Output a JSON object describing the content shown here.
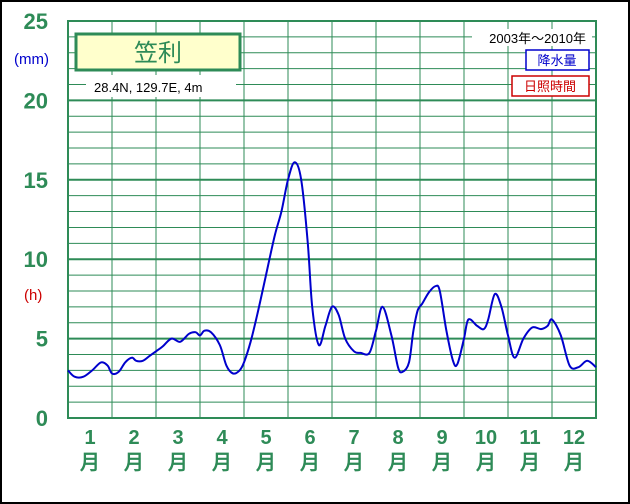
{
  "chart_data": {
    "type": "line",
    "station": {
      "name": "笠利",
      "coords": "28.4N,  129.7E,  4m"
    },
    "period": "2003年〜2010年",
    "legend": {
      "rain": "降水量",
      "sunshine": "日照時間"
    },
    "units": {
      "left": "(mm)",
      "right": "(h)"
    },
    "yticks": [
      "25",
      "20",
      "15",
      "10",
      "5",
      "0"
    ],
    "ylim": [
      0,
      25
    ],
    "xlim": [
      0,
      12
    ],
    "grid": true,
    "months": [
      {
        "num": "1",
        "kanji": "月"
      },
      {
        "num": "2",
        "kanji": "月"
      },
      {
        "num": "3",
        "kanji": "月"
      },
      {
        "num": "4",
        "kanji": "月"
      },
      {
        "num": "5",
        "kanji": "月"
      },
      {
        "num": "6",
        "kanji": "月"
      },
      {
        "num": "7",
        "kanji": "月"
      },
      {
        "num": "8",
        "kanji": "月"
      },
      {
        "num": "9",
        "kanji": "月"
      },
      {
        "num": "10",
        "kanji": "月"
      },
      {
        "num": "11",
        "kanji": "月"
      },
      {
        "num": "12",
        "kanji": "月"
      }
    ],
    "series": [
      {
        "name": "降水量",
        "color": "#0000cc",
        "x": [
          0.0,
          0.15,
          0.35,
          0.55,
          0.75,
          0.9,
          1.0,
          1.15,
          1.3,
          1.45,
          1.55,
          1.7,
          1.85,
          2.0,
          2.15,
          2.35,
          2.55,
          2.75,
          2.9,
          3.0,
          3.1,
          3.25,
          3.45,
          3.6,
          3.75,
          3.9,
          4.0,
          4.15,
          4.3,
          4.5,
          4.7,
          4.85,
          5.0,
          5.15,
          5.3,
          5.45,
          5.55,
          5.7,
          5.85,
          6.0,
          6.15,
          6.3,
          6.5,
          6.65,
          6.85,
          7.0,
          7.15,
          7.35,
          7.5,
          7.6,
          7.75,
          7.85,
          7.95,
          8.05,
          8.2,
          8.35,
          8.45,
          8.6,
          8.75,
          8.85,
          9.0,
          9.1,
          9.3,
          9.45,
          9.55,
          9.7,
          9.85,
          10.0,
          10.15,
          10.35,
          10.55,
          10.75,
          10.9,
          11.0,
          11.2,
          11.4,
          11.6,
          11.8,
          12.0
        ],
        "values": [
          3.0,
          2.6,
          2.6,
          3.0,
          3.5,
          3.3,
          2.8,
          2.9,
          3.5,
          3.8,
          3.6,
          3.6,
          3.9,
          4.2,
          4.5,
          5.0,
          4.8,
          5.3,
          5.4,
          5.2,
          5.5,
          5.4,
          4.6,
          3.3,
          2.8,
          3.0,
          3.5,
          4.8,
          6.5,
          9.0,
          11.5,
          13.0,
          15.0,
          16.1,
          15.0,
          11.0,
          7.0,
          4.6,
          5.8,
          7.0,
          6.5,
          5.0,
          4.2,
          4.1,
          4.1,
          5.5,
          7.0,
          5.2,
          3.2,
          2.9,
          3.5,
          5.5,
          6.8,
          7.2,
          7.9,
          8.3,
          8.0,
          5.5,
          3.6,
          3.4,
          5.0,
          6.2,
          5.8,
          5.6,
          6.2,
          7.8,
          7.0,
          5.2,
          3.8,
          5.0,
          5.7,
          5.6,
          5.8,
          6.2,
          5.2,
          3.3,
          3.2,
          3.6,
          3.2
        ]
      }
    ]
  }
}
